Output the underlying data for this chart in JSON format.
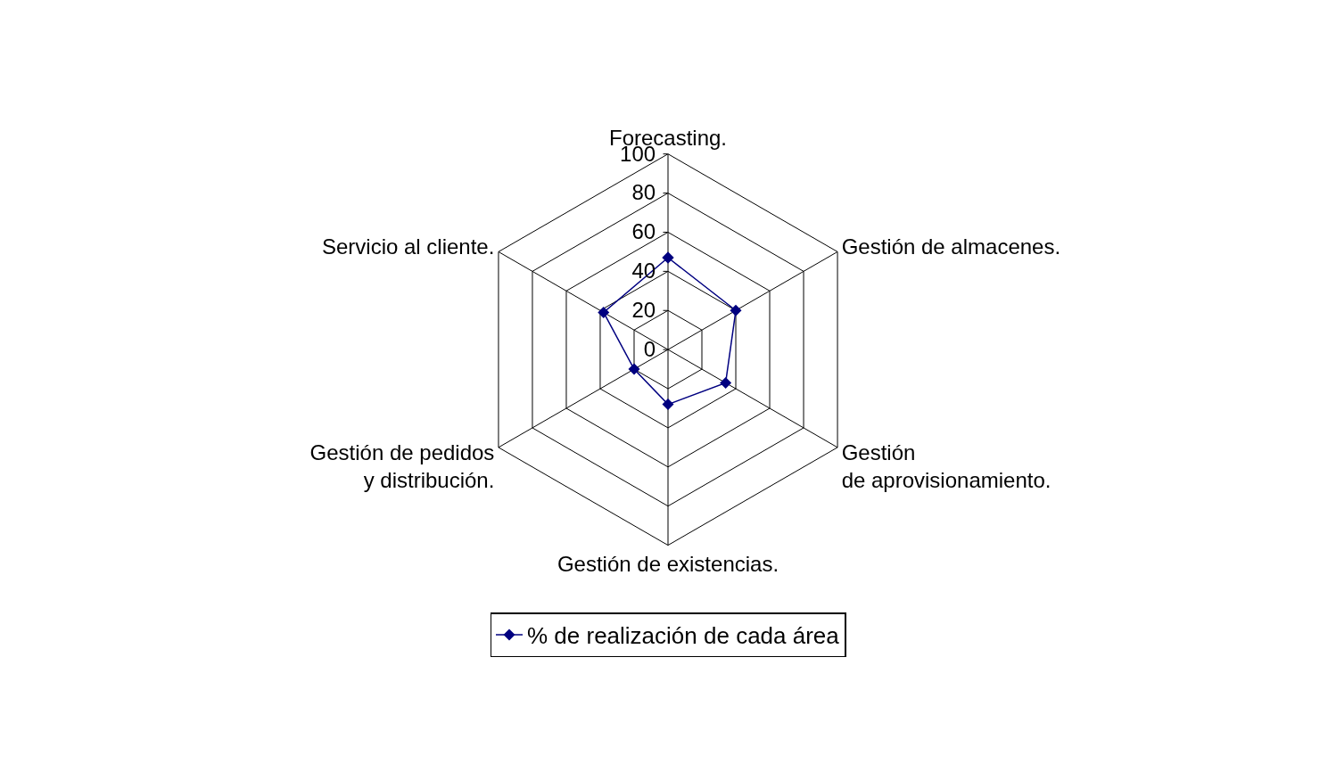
{
  "chart_data": {
    "type": "radar",
    "categories": [
      "Forecasting.",
      "Gestión de almacenes.",
      "Gestión de aprovisionamiento.",
      "Gestión de existencias.",
      "Gestión de pedidos y distribución.",
      "Servicio al cliente."
    ],
    "series": [
      {
        "name": "% de realización de cada área",
        "color": "#000080",
        "values": [
          47,
          40,
          34,
          28,
          20,
          38
        ]
      }
    ],
    "ylim": [
      0,
      100
    ],
    "yticks": [
      0,
      20,
      40,
      60,
      80,
      100
    ],
    "grid": true,
    "legend": "bottom",
    "marker": "diamond",
    "line_style": "solid"
  }
}
